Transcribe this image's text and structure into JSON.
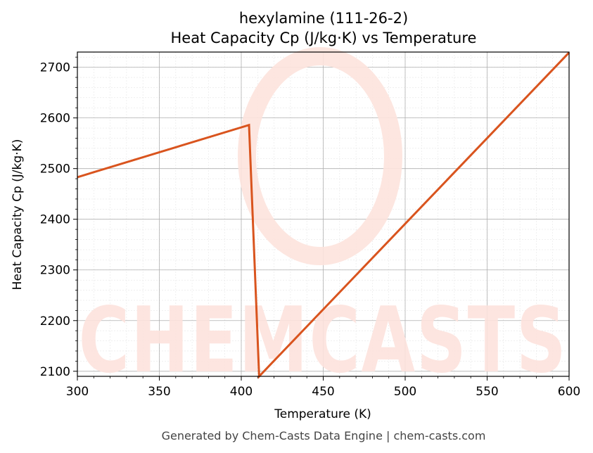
{
  "chart_data": {
    "type": "line",
    "title": "hexylamine (111-26-2)",
    "subtitle": "Heat Capacity Cp (J/kg·K) vs Temperature",
    "xlabel": "Temperature (K)",
    "ylabel": "Heat Capacity Cp (J/kg·K)",
    "xlim": [
      300,
      600
    ],
    "ylim": [
      2090,
      2730
    ],
    "x_ticks": [
      300,
      350,
      400,
      450,
      500,
      550,
      600
    ],
    "y_ticks": [
      2100,
      2200,
      2300,
      2400,
      2500,
      2600,
      2700
    ],
    "grid": true,
    "series": [
      {
        "color": "#d9541e",
        "x": [
          300,
          404.7,
          410.9,
          600
        ],
        "y": [
          2483,
          2586,
          2090,
          2729
        ]
      }
    ]
  },
  "watermark": "CHEMCASTS",
  "footer": "Generated by Chem-Casts Data Engine | chem-casts.com"
}
